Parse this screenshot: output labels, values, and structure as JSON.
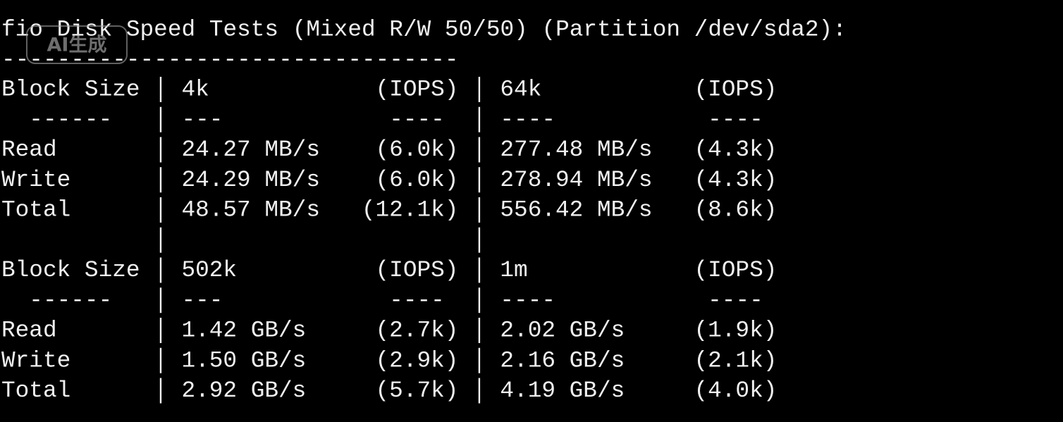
{
  "title": "fio Disk Speed Tests (Mixed R/W 50/50) (Partition /dev/sda2):",
  "separator": "---------------------------------",
  "watermark": "AI生成",
  "blocks": [
    {
      "header": [
        "Block Size",
        "4k",
        "(IOPS)",
        "64k",
        "(IOPS)"
      ],
      "dashes": [
        "------",
        "---",
        "----",
        "----",
        "----"
      ],
      "rows": [
        [
          "Read",
          "24.27 MB/s",
          "(6.0k)",
          "277.48 MB/s",
          "(4.3k)"
        ],
        [
          "Write",
          "24.29 MB/s",
          "(6.0k)",
          "278.94 MB/s",
          "(4.3k)"
        ],
        [
          "Total",
          "48.57 MB/s",
          "(12.1k)",
          "556.42 MB/s",
          "(8.6k)"
        ]
      ]
    },
    {
      "header": [
        "Block Size",
        "502k",
        "(IOPS)",
        "1m",
        "(IOPS)"
      ],
      "dashes": [
        "------",
        "---",
        "----",
        "----",
        "----"
      ],
      "rows": [
        [
          "Read",
          "1.42 GB/s",
          "(2.7k)",
          "2.02 GB/s",
          "(1.9k)"
        ],
        [
          "Write",
          "1.50 GB/s",
          "(2.9k)",
          "2.16 GB/s",
          "(2.1k)"
        ],
        [
          "Total",
          "2.92 GB/s",
          "(5.7k)",
          "4.19 GB/s",
          "(4.0k)"
        ]
      ]
    }
  ]
}
